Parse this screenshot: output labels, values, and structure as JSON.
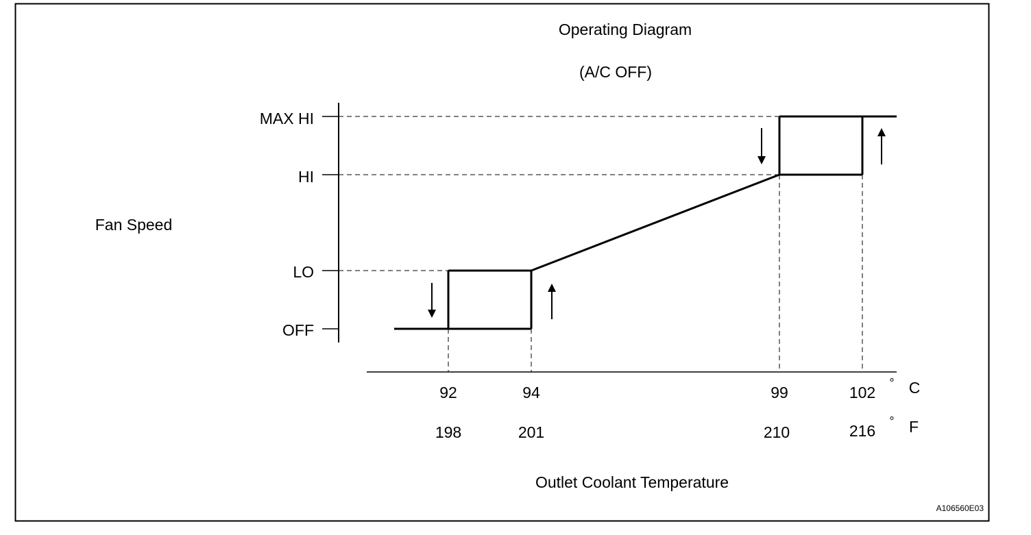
{
  "title": "Operating Diagram",
  "subtitle": "(A/C OFF)",
  "y_axis_label": "Fan Speed",
  "x_axis_label": "Outlet Coolant Temperature",
  "figure_id": "A106560E03",
  "unit_c": {
    "degree": "°",
    "letter": "C"
  },
  "unit_f": {
    "degree": "°",
    "letter": "F"
  },
  "levels": [
    "MAX HI",
    "HI",
    "LO",
    "OFF"
  ],
  "temps_c": [
    "92",
    "94",
    "99",
    "102"
  ],
  "temps_f": [
    "198",
    "201",
    "210",
    "216"
  ],
  "colors": {
    "ink": "#000000",
    "background": "#ffffff"
  }
}
